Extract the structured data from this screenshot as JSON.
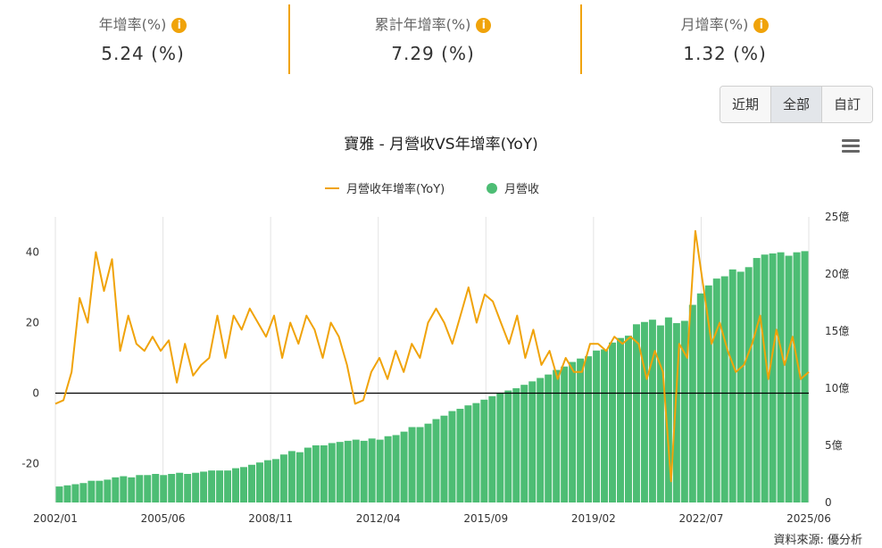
{
  "stats": [
    {
      "label": "年增率(%)",
      "value": "5.24 (%)"
    },
    {
      "label": "累計年增率(%)",
      "value": "7.29 (%)"
    },
    {
      "label": "月增率(%)",
      "value": "1.32 (%)"
    }
  ],
  "info_icon_glyph": "i",
  "range_buttons": [
    "近期",
    "全部",
    "自訂"
  ],
  "active_range": "全部",
  "chart_title": "寶雅 - 月營收VS年增率(YoY)",
  "legend": {
    "yoy": "月營收年增率(YoY)",
    "revenue": "月營收"
  },
  "source": "資料來源: 優分析",
  "colors": {
    "yoy": "#f0a30a",
    "revenue": "#4dbd74",
    "accent": "#f0a30a"
  },
  "chart_data": {
    "type": "bar+line",
    "title": "寶雅 - 月營收VS年增率(YoY)",
    "x_tick_labels": [
      "2002/01",
      "2005/06",
      "2008/11",
      "2012/04",
      "2015/09",
      "2019/02",
      "2022/07",
      "2025/06"
    ],
    "x_range": [
      "2002/01",
      "2025/06"
    ],
    "left_axis": {
      "ticks": [
        40,
        20,
        0,
        -20
      ],
      "range": [
        -31,
        50
      ],
      "series": "月營收年增率(YoY)"
    },
    "right_axis": {
      "tick_labels": [
        "25億",
        "20億",
        "15億",
        "10億",
        "5億",
        "0"
      ],
      "ticks": [
        25,
        20,
        15,
        10,
        5,
        0
      ],
      "range": [
        0,
        25
      ],
      "unit": "億",
      "series": "月營收"
    },
    "grid": "vertical",
    "legend_position": "top-center",
    "series": [
      {
        "name": "月營收",
        "type": "bar",
        "axis": "right",
        "unit": "億",
        "sampling": "one value per 3 months",
        "x_start": "2002/01",
        "values": [
          1.4,
          1.5,
          1.6,
          1.7,
          1.9,
          1.9,
          2.0,
          2.2,
          2.3,
          2.2,
          2.4,
          2.4,
          2.5,
          2.4,
          2.5,
          2.6,
          2.5,
          2.6,
          2.7,
          2.8,
          2.8,
          2.8,
          3.0,
          3.1,
          3.3,
          3.5,
          3.7,
          3.8,
          4.2,
          4.5,
          4.4,
          4.8,
          5.0,
          5.0,
          5.2,
          5.3,
          5.4,
          5.5,
          5.4,
          5.6,
          5.5,
          5.8,
          5.9,
          6.2,
          6.6,
          6.6,
          6.9,
          7.3,
          7.6,
          8.0,
          8.2,
          8.5,
          8.7,
          9.0,
          9.3,
          9.6,
          9.8,
          10.0,
          10.3,
          10.6,
          10.9,
          11.2,
          11.6,
          11.9,
          12.3,
          12.6,
          12.8,
          13.3,
          13.4,
          14.0,
          14.4,
          14.6,
          15.6,
          15.8,
          16.0,
          15.5,
          16.2,
          15.7,
          15.9,
          17.3,
          18.3,
          19.0,
          19.6,
          19.8,
          20.4,
          20.2,
          20.6,
          21.4,
          21.7,
          21.8,
          21.9,
          21.6,
          21.9,
          22.0
        ]
      },
      {
        "name": "月營收年增率(YoY)",
        "type": "line",
        "axis": "left",
        "unit": "%",
        "sampling": "one value per 3 months",
        "x_start": "2002/01",
        "values": [
          -3,
          -2,
          6,
          27,
          20,
          40,
          29,
          38,
          12,
          22,
          14,
          12,
          16,
          12,
          15,
          3,
          14,
          5,
          8,
          10,
          22,
          10,
          22,
          18,
          24,
          20,
          16,
          22,
          10,
          20,
          14,
          22,
          18,
          10,
          20,
          16,
          8,
          -3,
          -2,
          6,
          10,
          4,
          12,
          6,
          14,
          10,
          20,
          24,
          20,
          14,
          22,
          30,
          20,
          28,
          26,
          20,
          14,
          22,
          10,
          18,
          8,
          12,
          4,
          10,
          6,
          6,
          14,
          14,
          12,
          16,
          14,
          16,
          14,
          4,
          12,
          6,
          -25,
          14,
          10,
          46,
          30,
          14,
          20,
          12,
          6,
          8,
          14,
          22,
          4,
          18,
          8,
          16,
          4,
          6
        ]
      }
    ]
  }
}
